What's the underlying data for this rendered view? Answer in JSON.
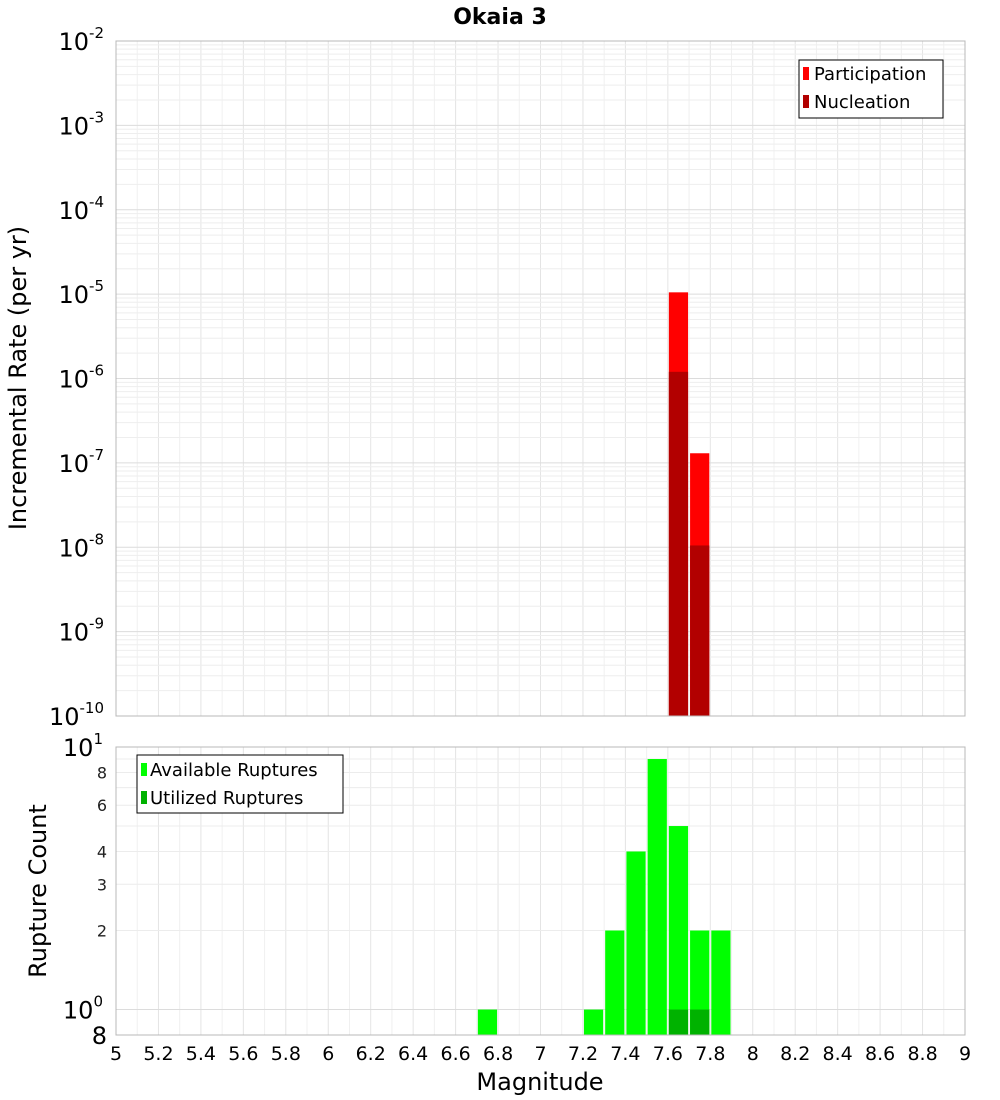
{
  "chart_data": [
    {
      "type": "bar",
      "title": "Okaia 3",
      "xlabel": "",
      "ylabel": "Incremental Rate (per yr)",
      "yscale": "log",
      "ylim": [
        1e-10,
        0.01
      ],
      "xlim": [
        5,
        9
      ],
      "y_ticks": [
        {
          "base": "10",
          "exp": "-2"
        },
        {
          "base": "10",
          "exp": "-3"
        },
        {
          "base": "10",
          "exp": "-4"
        },
        {
          "base": "10",
          "exp": "-5"
        },
        {
          "base": "10",
          "exp": "-6"
        },
        {
          "base": "10",
          "exp": "-7"
        },
        {
          "base": "10",
          "exp": "-8"
        },
        {
          "base": "10",
          "exp": "-9"
        },
        {
          "base": "10",
          "exp": "-10"
        }
      ],
      "grid": true,
      "legend_position": "top-right",
      "series": [
        {
          "name": "Participation",
          "color": "#ff0000",
          "x": [
            7.65,
            7.75
          ],
          "values": [
            1.05e-05,
            1.3e-07
          ]
        },
        {
          "name": "Nucleation",
          "color": "#b20000",
          "x": [
            7.65,
            7.75
          ],
          "values": [
            1.2e-06,
            1.05e-08
          ]
        }
      ]
    },
    {
      "type": "bar",
      "title": "",
      "xlabel": "Magnitude",
      "ylabel": "Rupture Count",
      "yscale": "log",
      "ylim": [
        0.8,
        10
      ],
      "xlim": [
        5,
        9
      ],
      "y_ticks_major": [
        {
          "base": "10",
          "exp": "1"
        },
        {
          "base": "10",
          "exp": "0"
        }
      ],
      "y_ticks_minor": [
        "8",
        "6",
        "4",
        "3",
        "2"
      ],
      "y_bottom_label": "8",
      "x_ticks": [
        "5",
        "5.2",
        "5.4",
        "5.6",
        "5.8",
        "6",
        "6.2",
        "6.4",
        "6.6",
        "6.8",
        "7",
        "7.2",
        "7.4",
        "7.6",
        "7.8",
        "8",
        "8.2",
        "8.4",
        "8.6",
        "8.8",
        "9"
      ],
      "grid": true,
      "legend_position": "top-left",
      "series": [
        {
          "name": "Available Ruptures",
          "color": "#00ff00",
          "x": [
            6.75,
            7.25,
            7.35,
            7.45,
            7.55,
            7.65,
            7.75,
            7.85
          ],
          "values": [
            1,
            1,
            2,
            4,
            9,
            5,
            2,
            2
          ]
        },
        {
          "name": "Utilized Ruptures",
          "color": "#00b200",
          "x": [
            7.65,
            7.75
          ],
          "values": [
            1,
            1
          ]
        }
      ]
    }
  ]
}
